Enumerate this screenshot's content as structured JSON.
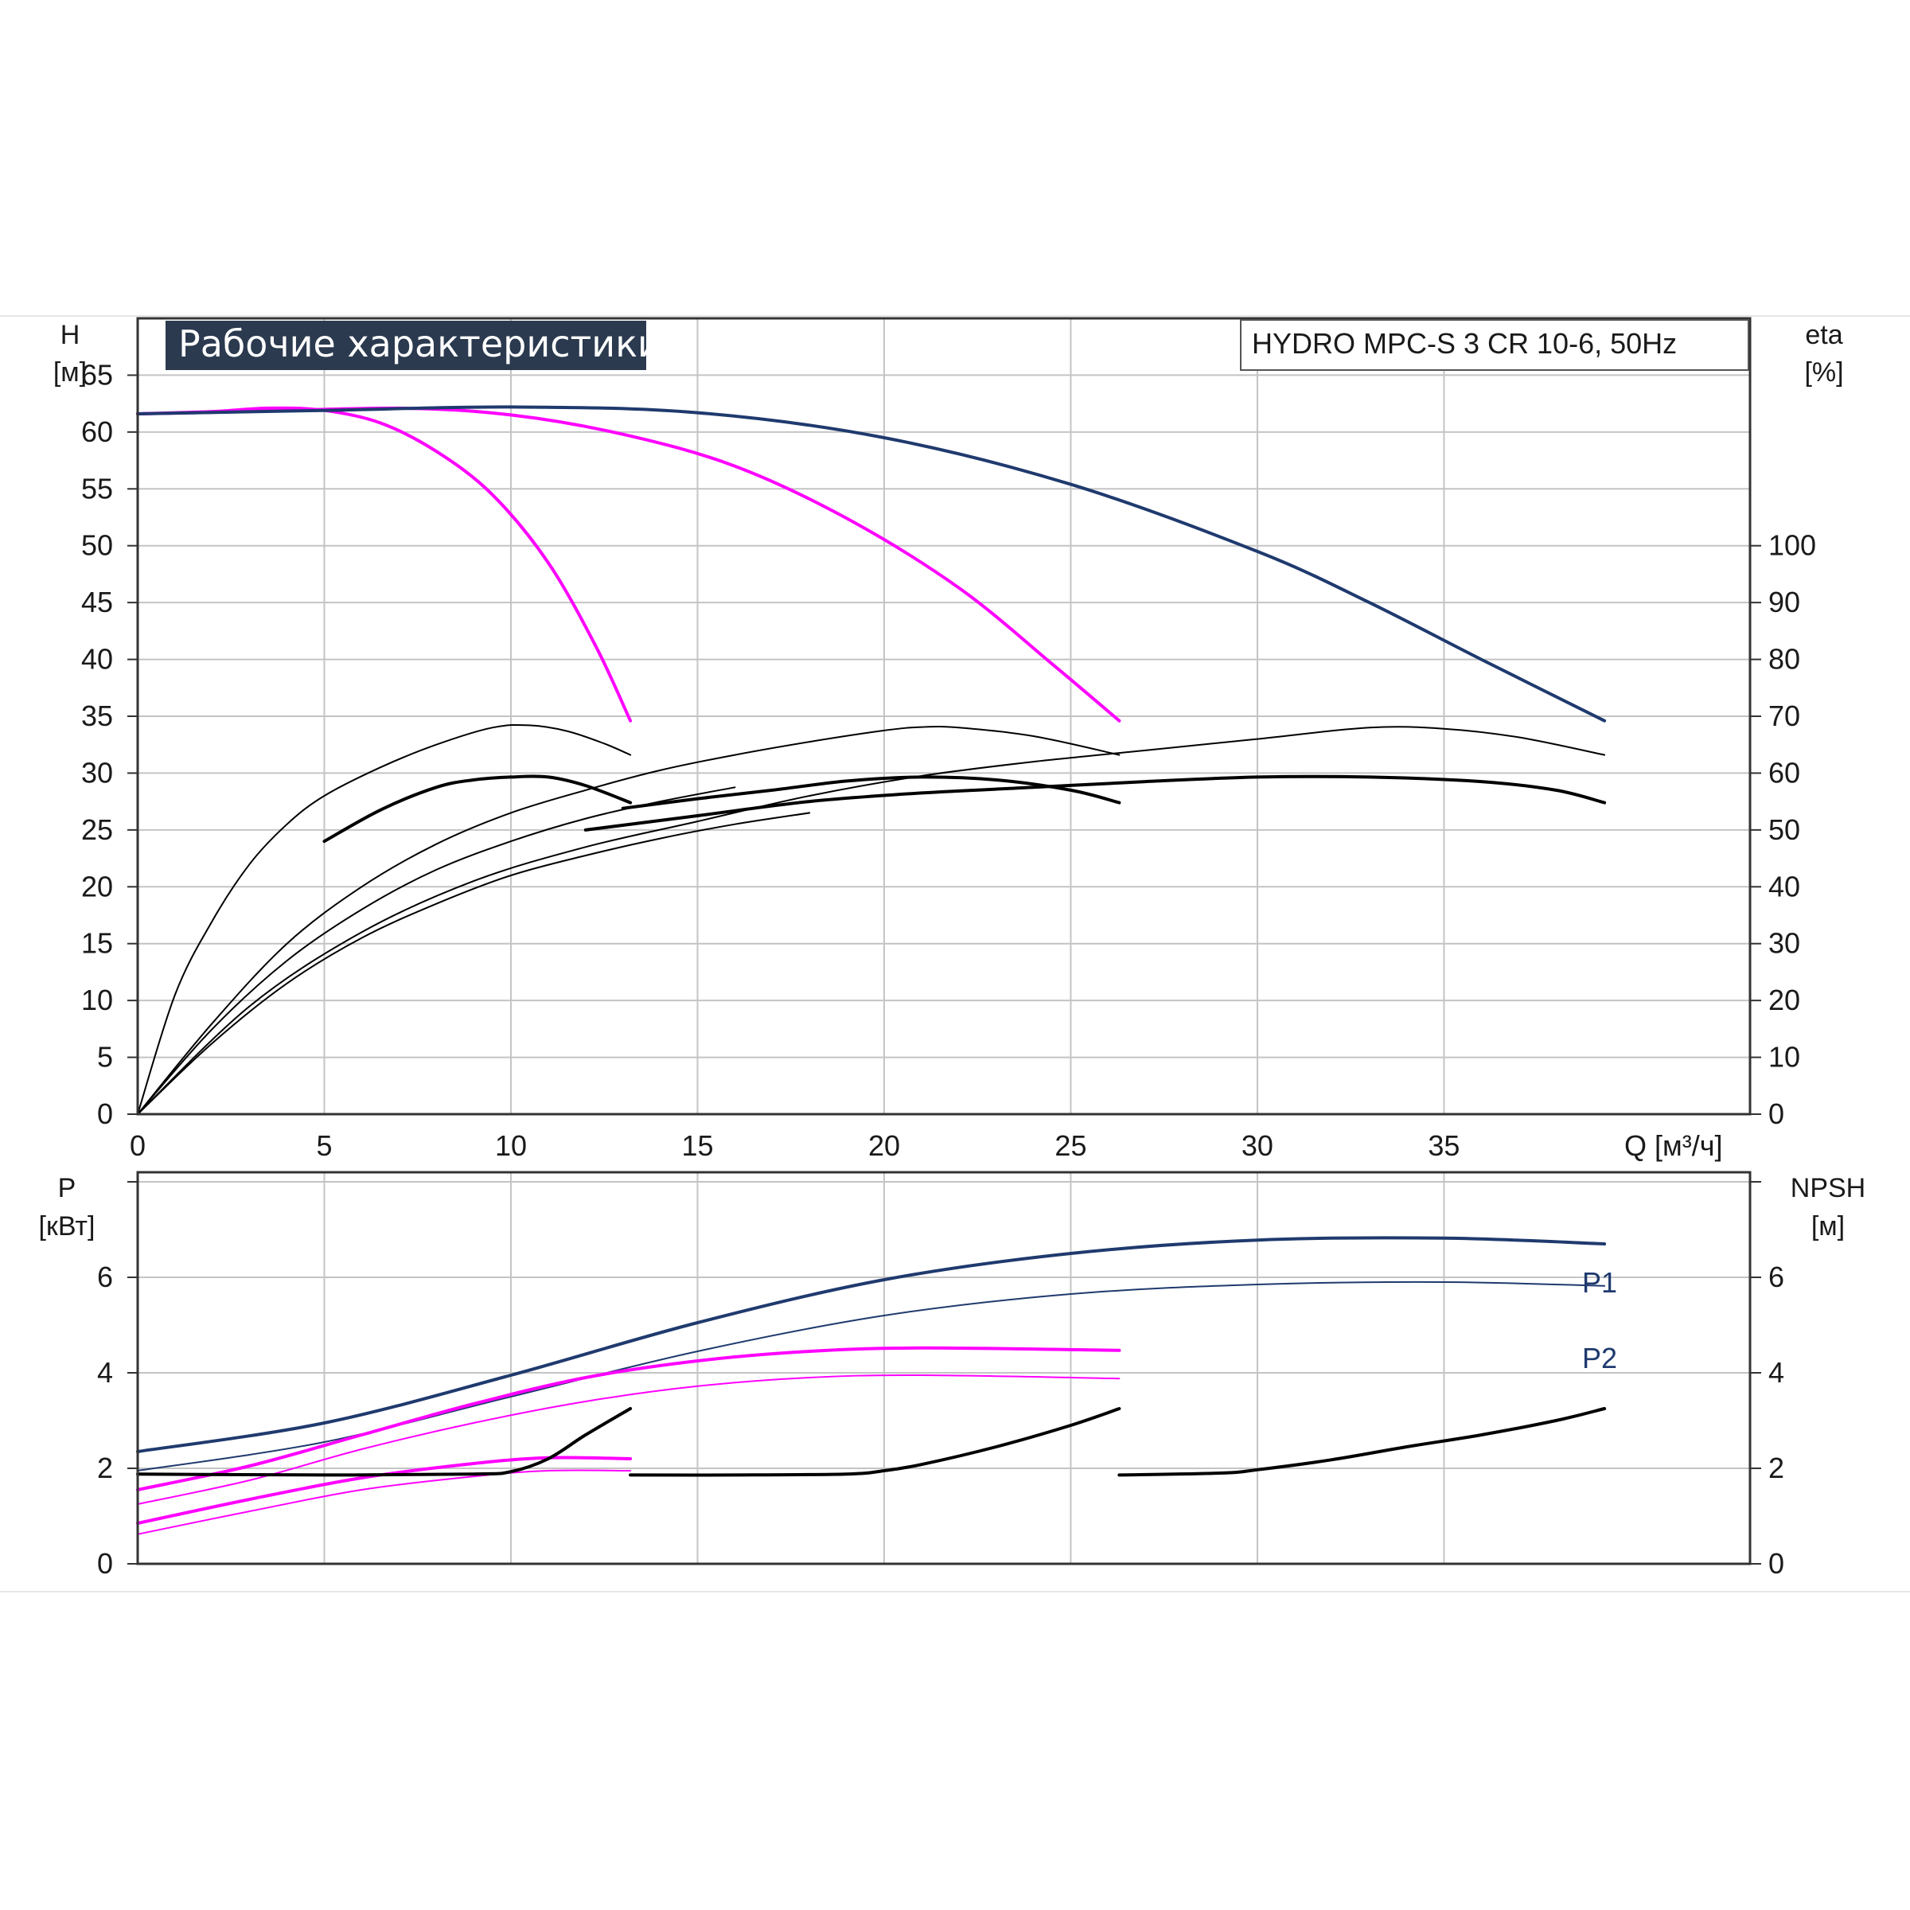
{
  "chart_data": [
    {
      "type": "line",
      "title": "Рабочие характеристики",
      "model": "HYDRO MPC-S 3 CR 10-6, 50Hz",
      "xlabel": "Q [м³/ч]",
      "ylabel_left": [
        "H",
        "[м]"
      ],
      "ylabel_right": [
        "eta",
        "[%]"
      ],
      "xlim": [
        0,
        43.2
      ],
      "ylim_left": [
        0,
        70
      ],
      "ylim_right": [
        0,
        140
      ],
      "x_ticks": [
        "0",
        "5",
        "10",
        "15",
        "20",
        "25",
        "30",
        "35"
      ],
      "y_ticks_left": [
        "0",
        "5",
        "10",
        "15",
        "20",
        "25",
        "30",
        "35",
        "40",
        "45",
        "50",
        "55",
        "60",
        "65"
      ],
      "y_ticks_right": [
        "0",
        "10",
        "20",
        "30",
        "40",
        "50",
        "60",
        "70",
        "80",
        "90",
        "100"
      ],
      "grid": true,
      "colors": {
        "one_pump": "#ff00ff",
        "two_pumps": "#ff00ff",
        "three_pumps": "#1f3a6e",
        "efficiency": "#000000"
      },
      "series": [
        {
          "group": "head",
          "color": "#ff00ff",
          "points": [
            [
              0,
              61.6
            ],
            [
              2,
              61.8
            ],
            [
              3.5,
              62.1
            ],
            [
              5,
              61.9
            ],
            [
              6.5,
              60.8
            ],
            [
              8,
              58.3
            ],
            [
              9.5,
              54.5
            ],
            [
              11,
              48.5
            ],
            [
              12.3,
              41
            ],
            [
              13.2,
              34.6
            ]
          ]
        },
        {
          "group": "head",
          "color": "#ff00ff",
          "points": [
            [
              0,
              61.6
            ],
            [
              3,
              61.8
            ],
            [
              7,
              62.1
            ],
            [
              10,
              61.5
            ],
            [
              13,
              59.8
            ],
            [
              16,
              57
            ],
            [
              19,
              52.4
            ],
            [
              22,
              46.3
            ],
            [
              24.5,
              39.6
            ],
            [
              26.3,
              34.6
            ]
          ]
        },
        {
          "group": "head",
          "color": "#1f3a6e",
          "points": [
            [
              0,
              61.6
            ],
            [
              5,
              61.9
            ],
            [
              10,
              62.2
            ],
            [
              15,
              61.7
            ],
            [
              20,
              59.5
            ],
            [
              25,
              55.4
            ],
            [
              30,
              49.5
            ],
            [
              33,
              45
            ],
            [
              36,
              40
            ],
            [
              39.3,
              34.6
            ]
          ]
        },
        {
          "group": "efficiency",
          "color": "#000000",
          "weight": "thin",
          "points": [
            [
              0,
              0
            ],
            [
              1,
              21
            ],
            [
              2,
              34
            ],
            [
              3,
              44
            ],
            [
              4,
              51
            ],
            [
              5,
              56
            ],
            [
              6.5,
              61
            ],
            [
              8,
              65
            ],
            [
              9.5,
              68
            ],
            [
              10.5,
              68.4
            ],
            [
              11.5,
              67.4
            ],
            [
              12.5,
              65.2
            ],
            [
              13.2,
              63.2
            ]
          ]
        },
        {
          "group": "efficiency",
          "color": "#000000",
          "weight": "thick",
          "points": [
            [
              5,
              48
            ],
            [
              6.5,
              53.5
            ],
            [
              8,
              57.5
            ],
            [
              9,
              58.8
            ],
            [
              10,
              59.3
            ],
            [
              11,
              59.3
            ],
            [
              12,
              57.8
            ],
            [
              13.2,
              54.8
            ]
          ]
        },
        {
          "group": "efficiency",
          "color": "#000000",
          "weight": "thin",
          "points": [
            [
              0,
              0
            ],
            [
              2,
              16
            ],
            [
              4,
              30
            ],
            [
              6,
              40
            ],
            [
              8,
              47.5
            ],
            [
              10,
              53
            ],
            [
              12,
              57
            ],
            [
              14,
              60.5
            ],
            [
              16,
              63.2
            ],
            [
              18,
              65.5
            ],
            [
              20,
              67.5
            ],
            [
              21,
              68.1
            ],
            [
              22,
              68
            ],
            [
              24,
              66.5
            ],
            [
              26.3,
              63.2
            ]
          ]
        },
        {
          "group": "efficiency",
          "color": "#000000",
          "weight": "thick",
          "points": [
            [
              13,
              53.8
            ],
            [
              15,
              55.5
            ],
            [
              17,
              57
            ],
            [
              19,
              58.6
            ],
            [
              21,
              59.3
            ],
            [
              23,
              58.8
            ],
            [
              25,
              57
            ],
            [
              26.3,
              54.8
            ]
          ]
        },
        {
          "group": "efficiency",
          "color": "#000000",
          "weight": "thin",
          "points": [
            [
              0,
              0
            ],
            [
              3,
              19
            ],
            [
              6,
              32
            ],
            [
              9,
              41
            ],
            [
              12,
              47
            ],
            [
              15,
              51.5
            ],
            [
              18,
              56
            ],
            [
              21,
              59.5
            ],
            [
              24,
              62
            ],
            [
              27,
              64
            ],
            [
              30,
              66
            ],
            [
              33,
              68
            ],
            [
              35,
              67.8
            ],
            [
              37,
              66.3
            ],
            [
              39.3,
              63.2
            ]
          ]
        },
        {
          "group": "efficiency",
          "color": "#000000",
          "weight": "thick",
          "points": [
            [
              12,
              50
            ],
            [
              15,
              52.5
            ],
            [
              18,
              55
            ],
            [
              21,
              56.5
            ],
            [
              24,
              57.5
            ],
            [
              27,
              58.5
            ],
            [
              30,
              59.3
            ],
            [
              33,
              59.3
            ],
            [
              36,
              58.5
            ],
            [
              38,
              57
            ],
            [
              39.3,
              54.8
            ]
          ]
        },
        {
          "group": "efficiency",
          "color": "#000000",
          "weight": "thin",
          "points": [
            [
              0,
              0
            ],
            [
              2,
              15
            ],
            [
              4,
              27
            ],
            [
              6,
              36
            ],
            [
              8,
              43
            ],
            [
              10,
              48
            ],
            [
              12,
              52
            ],
            [
              14,
              55
            ],
            [
              16,
              57.5
            ]
          ]
        },
        {
          "group": "efficiency",
          "color": "#000000",
          "weight": "thin",
          "points": [
            [
              0,
              0
            ],
            [
              2,
              12.5
            ],
            [
              4,
              23
            ],
            [
              6,
              31
            ],
            [
              8,
              37
            ],
            [
              10,
              42
            ],
            [
              12,
              45.5
            ],
            [
              14,
              48.5
            ],
            [
              16,
              51
            ],
            [
              18,
              53
            ]
          ]
        }
      ]
    },
    {
      "type": "line",
      "ylabel_left": [
        "P",
        "[кВт]"
      ],
      "ylabel_right": [
        "NPSH",
        "[м]"
      ],
      "xlim": [
        0,
        43.2
      ],
      "ylim_left": [
        0,
        8.2
      ],
      "ylim_right": [
        0,
        8.2
      ],
      "y_ticks_left": [
        "0",
        "2",
        "4",
        "6"
      ],
      "y_ticks_right": [
        "0",
        "2",
        "4",
        "6"
      ],
      "grid": true,
      "labels": [
        "P1",
        "P2"
      ],
      "series": [
        {
          "name": "P1",
          "group": "power",
          "color": "#1f3a6e",
          "weight": "thick",
          "points": [
            [
              0,
              2.35
            ],
            [
              5,
              2.95
            ],
            [
              10,
              3.95
            ],
            [
              15,
              5.05
            ],
            [
              20,
              5.95
            ],
            [
              25,
              6.5
            ],
            [
              30,
              6.78
            ],
            [
              35,
              6.82
            ],
            [
              39.3,
              6.7
            ]
          ]
        },
        {
          "name": "P2",
          "group": "power",
          "color": "#1f3a6e",
          "weight": "thin",
          "points": [
            [
              0,
              1.95
            ],
            [
              5,
              2.55
            ],
            [
              10,
              3.5
            ],
            [
              15,
              4.45
            ],
            [
              20,
              5.2
            ],
            [
              25,
              5.65
            ],
            [
              30,
              5.85
            ],
            [
              35,
              5.9
            ],
            [
              39.3,
              5.82
            ]
          ]
        },
        {
          "group": "power",
          "color": "#ff00ff",
          "weight": "thick",
          "points": [
            [
              0,
              1.55
            ],
            [
              3,
              2.05
            ],
            [
              6,
              2.7
            ],
            [
              9,
              3.35
            ],
            [
              12,
              3.9
            ],
            [
              15,
              4.25
            ],
            [
              18,
              4.45
            ],
            [
              21,
              4.52
            ],
            [
              26.3,
              4.47
            ]
          ]
        },
        {
          "group": "power",
          "color": "#ff00ff",
          "weight": "thin",
          "points": [
            [
              0,
              1.25
            ],
            [
              3,
              1.75
            ],
            [
              6,
              2.4
            ],
            [
              9,
              2.95
            ],
            [
              12,
              3.4
            ],
            [
              15,
              3.72
            ],
            [
              18,
              3.9
            ],
            [
              21,
              3.95
            ],
            [
              26.3,
              3.88
            ]
          ]
        },
        {
          "group": "power",
          "color": "#ff00ff",
          "weight": "thick",
          "points": [
            [
              0,
              0.85
            ],
            [
              3,
              1.35
            ],
            [
              6,
              1.8
            ],
            [
              9,
              2.1
            ],
            [
              11,
              2.22
            ],
            [
              13.2,
              2.2
            ]
          ]
        },
        {
          "group": "power",
          "color": "#ff00ff",
          "weight": "thin",
          "points": [
            [
              0,
              0.62
            ],
            [
              3,
              1.1
            ],
            [
              6,
              1.55
            ],
            [
              9,
              1.83
            ],
            [
              11,
              1.95
            ],
            [
              13.2,
              1.95
            ]
          ]
        },
        {
          "group": "npsh",
          "color": "#000000",
          "weight": "thick",
          "points": [
            [
              0,
              1.88
            ],
            [
              5,
              1.86
            ],
            [
              9,
              1.88
            ],
            [
              10,
              1.93
            ],
            [
              11,
              2.2
            ],
            [
              12,
              2.7
            ],
            [
              13.2,
              3.25
            ]
          ]
        },
        {
          "group": "npsh",
          "color": "#000000",
          "weight": "thick",
          "points": [
            [
              13.2,
              1.86
            ],
            [
              16,
              1.86
            ],
            [
              19,
              1.88
            ],
            [
              20,
              1.95
            ],
            [
              21,
              2.08
            ],
            [
              23,
              2.45
            ],
            [
              25,
              2.9
            ],
            [
              26.3,
              3.25
            ]
          ]
        },
        {
          "group": "npsh",
          "color": "#000000",
          "weight": "thick",
          "points": [
            [
              26.3,
              1.86
            ],
            [
              29,
              1.9
            ],
            [
              30,
              1.97
            ],
            [
              32,
              2.18
            ],
            [
              34,
              2.45
            ],
            [
              36,
              2.7
            ],
            [
              38,
              3.0
            ],
            [
              39.3,
              3.25
            ]
          ]
        }
      ]
    }
  ]
}
